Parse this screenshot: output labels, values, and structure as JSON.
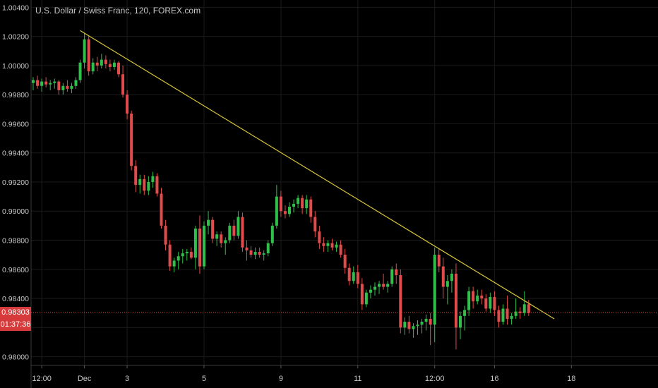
{
  "header": {
    "title": "U.S. Dollar / Swiss Franc, 120, FOREX.com"
  },
  "price_tag": {
    "price": "0.98303",
    "countdown": "01:37:36"
  },
  "colors": {
    "background": "#000000",
    "grid": "#1a1a1a",
    "up": "#2fbf4a",
    "down": "#e04b4b",
    "trendline": "#d8c53a",
    "price_line": "#e04b4b",
    "axis_text": "#c8c8c8"
  },
  "chart_data": {
    "type": "candlestick",
    "title": "U.S. Dollar / Swiss Franc, 120, FOREX.com",
    "ylim": [
      0.9794,
      1.0045
    ],
    "y_ticks": [
      "1.00400",
      "1.00200",
      "1.00000",
      "0.99800",
      "0.99600",
      "0.99400",
      "0.99200",
      "0.99000",
      "0.98800",
      "0.98600",
      "0.98400",
      "0.98200",
      "0.98000"
    ],
    "x_ticks": [
      {
        "label": "12:00",
        "bar": 2
      },
      {
        "label": "Dec",
        "bar": 12
      },
      {
        "label": "3",
        "bar": 22
      },
      {
        "label": "5",
        "bar": 40
      },
      {
        "label": "9",
        "bar": 58
      },
      {
        "label": "11",
        "bar": 76
      },
      {
        "label": "12:00",
        "bar": 94
      },
      {
        "label": "16",
        "bar": 108
      },
      {
        "label": "18",
        "bar": 126
      }
    ],
    "last_price": 0.98303,
    "trendline": {
      "from": {
        "bar": 11,
        "price": 1.0024
      },
      "to": {
        "bar": 122,
        "price": 0.9826
      }
    },
    "ohlc": [
      [
        0.9988,
        0.9992,
        0.9983,
        0.999
      ],
      [
        0.999,
        0.9993,
        0.9984,
        0.9986
      ],
      [
        0.9986,
        0.9991,
        0.9982,
        0.9989
      ],
      [
        0.9989,
        0.9992,
        0.9985,
        0.9987
      ],
      [
        0.9987,
        0.999,
        0.9983,
        0.9988
      ],
      [
        0.9988,
        0.9991,
        0.9984,
        0.9989
      ],
      [
        0.9989,
        0.999,
        0.998,
        0.9983
      ],
      [
        0.9983,
        0.9988,
        0.998,
        0.9986
      ],
      [
        0.9986,
        0.999,
        0.9982,
        0.9984
      ],
      [
        0.9984,
        0.9988,
        0.9981,
        0.9986
      ],
      [
        0.9986,
        0.9992,
        0.9984,
        0.999
      ],
      [
        0.999,
        1.0004,
        0.9988,
        1.0002
      ],
      [
        1.0002,
        1.0022,
        0.9998,
        1.0018
      ],
      [
        1.0018,
        1.002,
        0.9993,
        0.9996
      ],
      [
        0.9996,
        1.0005,
        0.9994,
        1.0002
      ],
      [
        1.0002,
        1.0006,
        0.9996,
        1.0
      ],
      [
        1.0,
        1.0008,
        0.9998,
        1.0004
      ],
      [
        1.0004,
        1.0007,
        0.9998,
        1.0001
      ],
      [
        1.0001,
        1.0004,
        0.9996,
        0.9999
      ],
      [
        0.9999,
        1.0004,
        0.9997,
        1.0002
      ],
      [
        1.0002,
        1.0003,
        0.9992,
        0.9994
      ],
      [
        0.9994,
        1.0,
        0.9978,
        0.998
      ],
      [
        0.998,
        0.9983,
        0.9963,
        0.9967
      ],
      [
        0.9967,
        0.9969,
        0.9928,
        0.9931
      ],
      [
        0.9931,
        0.9935,
        0.9913,
        0.9918
      ],
      [
        0.9918,
        0.9925,
        0.9912,
        0.9922
      ],
      [
        0.9922,
        0.9925,
        0.9911,
        0.9914
      ],
      [
        0.9914,
        0.9924,
        0.9911,
        0.992
      ],
      [
        0.992,
        0.9927,
        0.9916,
        0.9924
      ],
      [
        0.9924,
        0.9926,
        0.991,
        0.9912
      ],
      [
        0.9912,
        0.9916,
        0.9888,
        0.989
      ],
      [
        0.989,
        0.9894,
        0.9873,
        0.9877
      ],
      [
        0.9877,
        0.988,
        0.9859,
        0.9862
      ],
      [
        0.9862,
        0.9868,
        0.9858,
        0.9866
      ],
      [
        0.9866,
        0.9872,
        0.986,
        0.9869
      ],
      [
        0.9869,
        0.9874,
        0.9864,
        0.9871
      ],
      [
        0.9871,
        0.9874,
        0.9866,
        0.9872
      ],
      [
        0.9872,
        0.9875,
        0.9867,
        0.9868
      ],
      [
        0.9868,
        0.989,
        0.986,
        0.9888
      ],
      [
        0.9888,
        0.9897,
        0.9857,
        0.9862
      ],
      [
        0.9862,
        0.9893,
        0.986,
        0.989
      ],
      [
        0.989,
        0.99,
        0.9884,
        0.9894
      ],
      [
        0.9894,
        0.9896,
        0.9878,
        0.9881
      ],
      [
        0.9881,
        0.9886,
        0.9876,
        0.9884
      ],
      [
        0.9884,
        0.9886,
        0.9875,
        0.9878
      ],
      [
        0.9878,
        0.9882,
        0.987,
        0.988
      ],
      [
        0.988,
        0.9892,
        0.9878,
        0.989
      ],
      [
        0.989,
        0.9894,
        0.988,
        0.9883
      ],
      [
        0.9883,
        0.99,
        0.9881,
        0.9896
      ],
      [
        0.9896,
        0.9899,
        0.9872,
        0.9875
      ],
      [
        0.9875,
        0.988,
        0.9866,
        0.9873
      ],
      [
        0.9873,
        0.9876,
        0.9868,
        0.987
      ],
      [
        0.987,
        0.9875,
        0.9867,
        0.9872
      ],
      [
        0.9872,
        0.9875,
        0.9868,
        0.987
      ],
      [
        0.987,
        0.9873,
        0.9866,
        0.9871
      ],
      [
        0.9871,
        0.988,
        0.9869,
        0.9878
      ],
      [
        0.9878,
        0.9892,
        0.9876,
        0.989
      ],
      [
        0.989,
        0.9918,
        0.9888,
        0.991
      ],
      [
        0.991,
        0.9914,
        0.9896,
        0.99
      ],
      [
        0.99,
        0.9904,
        0.9895,
        0.9898
      ],
      [
        0.9898,
        0.9906,
        0.9896,
        0.9903
      ],
      [
        0.9903,
        0.9908,
        0.9899,
        0.9905
      ],
      [
        0.9905,
        0.9911,
        0.9902,
        0.9909
      ],
      [
        0.9909,
        0.9911,
        0.9898,
        0.9902
      ],
      [
        0.9902,
        0.9911,
        0.9898,
        0.9908
      ],
      [
        0.9908,
        0.991,
        0.9892,
        0.9896
      ],
      [
        0.9896,
        0.99,
        0.9882,
        0.9886
      ],
      [
        0.9886,
        0.989,
        0.9874,
        0.9878
      ],
      [
        0.9878,
        0.9882,
        0.9872,
        0.9876
      ],
      [
        0.9876,
        0.988,
        0.9872,
        0.9878
      ],
      [
        0.9878,
        0.9881,
        0.9873,
        0.9875
      ],
      [
        0.9875,
        0.9879,
        0.9872,
        0.9877
      ],
      [
        0.9877,
        0.988,
        0.9868,
        0.987
      ],
      [
        0.987,
        0.9874,
        0.9857,
        0.9861
      ],
      [
        0.9861,
        0.9864,
        0.9849,
        0.9852
      ],
      [
        0.9852,
        0.9862,
        0.985,
        0.9858
      ],
      [
        0.9858,
        0.9863,
        0.9847,
        0.985
      ],
      [
        0.985,
        0.9854,
        0.9832,
        0.9836
      ],
      [
        0.9836,
        0.9846,
        0.9834,
        0.9844
      ],
      [
        0.9844,
        0.9849,
        0.984,
        0.9846
      ],
      [
        0.9846,
        0.9851,
        0.9842,
        0.9848
      ],
      [
        0.9848,
        0.9852,
        0.9843,
        0.985
      ],
      [
        0.985,
        0.9857,
        0.9846,
        0.9848
      ],
      [
        0.9848,
        0.9852,
        0.9844,
        0.985
      ],
      [
        0.985,
        0.9862,
        0.9848,
        0.986
      ],
      [
        0.986,
        0.9864,
        0.985,
        0.9856
      ],
      [
        0.9856,
        0.986,
        0.9816,
        0.982
      ],
      [
        0.982,
        0.9827,
        0.9815,
        0.9824
      ],
      [
        0.9824,
        0.9828,
        0.9816,
        0.9819
      ],
      [
        0.9819,
        0.9823,
        0.9813,
        0.9821
      ],
      [
        0.9821,
        0.9825,
        0.9815,
        0.9822
      ],
      [
        0.9822,
        0.9826,
        0.9816,
        0.9824
      ],
      [
        0.9824,
        0.9829,
        0.9818,
        0.9826
      ],
      [
        0.9826,
        0.983,
        0.9808,
        0.9822
      ],
      [
        0.9822,
        0.9875,
        0.981,
        0.987
      ],
      [
        0.987,
        0.9874,
        0.9858,
        0.9862
      ],
      [
        0.9862,
        0.9868,
        0.984,
        0.9848
      ],
      [
        0.9848,
        0.9856,
        0.9836,
        0.9852
      ],
      [
        0.9852,
        0.986,
        0.9844,
        0.9857
      ],
      [
        0.9857,
        0.9864,
        0.9805,
        0.982
      ],
      [
        0.982,
        0.9831,
        0.9812,
        0.9828
      ],
      [
        0.9828,
        0.9835,
        0.9818,
        0.9832
      ],
      [
        0.9832,
        0.9848,
        0.9828,
        0.9845
      ],
      [
        0.9845,
        0.9848,
        0.9833,
        0.9838
      ],
      [
        0.9838,
        0.9846,
        0.9836,
        0.9842
      ],
      [
        0.9842,
        0.9846,
        0.9836,
        0.984
      ],
      [
        0.984,
        0.9843,
        0.9831,
        0.9833
      ],
      [
        0.9833,
        0.9844,
        0.983,
        0.9841
      ],
      [
        0.9841,
        0.9845,
        0.9828,
        0.9832
      ],
      [
        0.9832,
        0.9835,
        0.982,
        0.9824
      ],
      [
        0.9824,
        0.9836,
        0.9822,
        0.9833
      ],
      [
        0.9833,
        0.9842,
        0.9822,
        0.9826
      ],
      [
        0.9826,
        0.983,
        0.9822,
        0.9828
      ],
      [
        0.9828,
        0.984,
        0.9826,
        0.9831
      ],
      [
        0.9831,
        0.9834,
        0.9826,
        0.983
      ],
      [
        0.983,
        0.9845,
        0.9828,
        0.9836
      ],
      [
        0.9836,
        0.9839,
        0.9828,
        0.983
      ]
    ]
  }
}
